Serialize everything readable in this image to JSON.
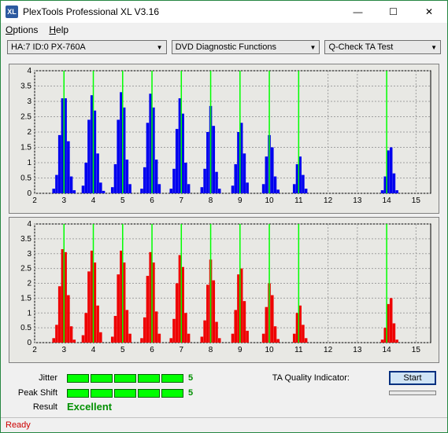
{
  "window": {
    "title": "PlexTools Professional XL V3.16",
    "icon_text": "XL",
    "close": "✕"
  },
  "menu": {
    "options": "Options",
    "help": "Help"
  },
  "toolbar": {
    "device": "HA:7 ID:0   PX-760A",
    "func": "DVD Diagnostic Functions",
    "test": "Q-Check TA Test"
  },
  "chart1": {
    "type": "bar",
    "color": "#0000ee",
    "bg": "#e8e8e2",
    "grid_color": "#a0a0a0",
    "marker_color": "#00ff00",
    "ylim": [
      0,
      4
    ],
    "ytick_step": 0.5,
    "xlim": [
      2,
      15.5
    ],
    "xtick_step": 1,
    "markers_x": [
      3,
      4,
      5,
      6,
      7,
      8,
      9,
      10,
      11,
      14
    ],
    "bars": [
      {
        "x": 2.65,
        "h": 0.15
      },
      {
        "x": 2.75,
        "h": 0.6
      },
      {
        "x": 2.85,
        "h": 1.9
      },
      {
        "x": 2.95,
        "h": 3.1
      },
      {
        "x": 3.05,
        "h": 3.1
      },
      {
        "x": 3.15,
        "h": 1.7
      },
      {
        "x": 3.25,
        "h": 0.55
      },
      {
        "x": 3.35,
        "h": 0.1
      },
      {
        "x": 3.65,
        "h": 0.25
      },
      {
        "x": 3.75,
        "h": 1.0
      },
      {
        "x": 3.85,
        "h": 2.4
      },
      {
        "x": 3.95,
        "h": 3.2
      },
      {
        "x": 4.05,
        "h": 2.7
      },
      {
        "x": 4.15,
        "h": 1.3
      },
      {
        "x": 4.25,
        "h": 0.35
      },
      {
        "x": 4.35,
        "h": 0.08
      },
      {
        "x": 4.65,
        "h": 0.2
      },
      {
        "x": 4.75,
        "h": 0.95
      },
      {
        "x": 4.85,
        "h": 2.4
      },
      {
        "x": 4.95,
        "h": 3.3
      },
      {
        "x": 5.05,
        "h": 2.8
      },
      {
        "x": 5.15,
        "h": 1.1
      },
      {
        "x": 5.25,
        "h": 0.3
      },
      {
        "x": 5.65,
        "h": 0.15
      },
      {
        "x": 5.75,
        "h": 0.85
      },
      {
        "x": 5.85,
        "h": 2.3
      },
      {
        "x": 5.95,
        "h": 3.25
      },
      {
        "x": 6.05,
        "h": 2.8
      },
      {
        "x": 6.15,
        "h": 1.1
      },
      {
        "x": 6.25,
        "h": 0.3
      },
      {
        "x": 6.65,
        "h": 0.15
      },
      {
        "x": 6.75,
        "h": 0.8
      },
      {
        "x": 6.85,
        "h": 2.1
      },
      {
        "x": 6.95,
        "h": 3.1
      },
      {
        "x": 7.05,
        "h": 2.6
      },
      {
        "x": 7.15,
        "h": 1.0
      },
      {
        "x": 7.25,
        "h": 0.3
      },
      {
        "x": 7.7,
        "h": 0.2
      },
      {
        "x": 7.8,
        "h": 0.8
      },
      {
        "x": 7.9,
        "h": 2.0
      },
      {
        "x": 8.0,
        "h": 2.85
      },
      {
        "x": 8.1,
        "h": 2.2
      },
      {
        "x": 8.2,
        "h": 0.7
      },
      {
        "x": 8.3,
        "h": 0.15
      },
      {
        "x": 8.75,
        "h": 0.25
      },
      {
        "x": 8.85,
        "h": 0.95
      },
      {
        "x": 8.95,
        "h": 2.0
      },
      {
        "x": 9.05,
        "h": 2.3
      },
      {
        "x": 9.15,
        "h": 1.3
      },
      {
        "x": 9.25,
        "h": 0.35
      },
      {
        "x": 9.8,
        "h": 0.3
      },
      {
        "x": 9.9,
        "h": 1.2
      },
      {
        "x": 10.0,
        "h": 1.9
      },
      {
        "x": 10.1,
        "h": 1.5
      },
      {
        "x": 10.2,
        "h": 0.55
      },
      {
        "x": 10.3,
        "h": 0.12
      },
      {
        "x": 10.85,
        "h": 0.3
      },
      {
        "x": 10.95,
        "h": 0.95
      },
      {
        "x": 11.05,
        "h": 1.2
      },
      {
        "x": 11.15,
        "h": 0.6
      },
      {
        "x": 11.25,
        "h": 0.15
      },
      {
        "x": 13.85,
        "h": 0.1
      },
      {
        "x": 13.95,
        "h": 0.55
      },
      {
        "x": 14.05,
        "h": 1.4
      },
      {
        "x": 14.15,
        "h": 1.5
      },
      {
        "x": 14.25,
        "h": 0.65
      },
      {
        "x": 14.35,
        "h": 0.1
      }
    ]
  },
  "chart2": {
    "type": "bar",
    "color": "#ee0000",
    "bg": "#e8e8e2",
    "grid_color": "#a0a0a0",
    "marker_color": "#00ff00",
    "ylim": [
      0,
      4
    ],
    "ytick_step": 0.5,
    "xlim": [
      2,
      15.5
    ],
    "xtick_step": 1,
    "markers_x": [
      3,
      4,
      5,
      6,
      7,
      8,
      9,
      10,
      11,
      14
    ],
    "bars": [
      {
        "x": 2.65,
        "h": 0.15
      },
      {
        "x": 2.75,
        "h": 0.6
      },
      {
        "x": 2.85,
        "h": 1.9
      },
      {
        "x": 2.95,
        "h": 3.15
      },
      {
        "x": 3.05,
        "h": 3.05
      },
      {
        "x": 3.15,
        "h": 1.6
      },
      {
        "x": 3.25,
        "h": 0.55
      },
      {
        "x": 3.35,
        "h": 0.1
      },
      {
        "x": 3.65,
        "h": 0.25
      },
      {
        "x": 3.75,
        "h": 1.0
      },
      {
        "x": 3.85,
        "h": 2.4
      },
      {
        "x": 3.95,
        "h": 3.1
      },
      {
        "x": 4.05,
        "h": 2.7
      },
      {
        "x": 4.15,
        "h": 1.25
      },
      {
        "x": 4.25,
        "h": 0.35
      },
      {
        "x": 4.65,
        "h": 0.2
      },
      {
        "x": 4.75,
        "h": 0.9
      },
      {
        "x": 4.85,
        "h": 2.3
      },
      {
        "x": 4.95,
        "h": 3.1
      },
      {
        "x": 5.05,
        "h": 2.7
      },
      {
        "x": 5.15,
        "h": 1.1
      },
      {
        "x": 5.25,
        "h": 0.3
      },
      {
        "x": 5.65,
        "h": 0.15
      },
      {
        "x": 5.75,
        "h": 0.85
      },
      {
        "x": 5.85,
        "h": 2.25
      },
      {
        "x": 5.95,
        "h": 3.05
      },
      {
        "x": 6.05,
        "h": 2.7
      },
      {
        "x": 6.15,
        "h": 1.05
      },
      {
        "x": 6.25,
        "h": 0.3
      },
      {
        "x": 6.65,
        "h": 0.15
      },
      {
        "x": 6.75,
        "h": 0.8
      },
      {
        "x": 6.85,
        "h": 2.0
      },
      {
        "x": 6.95,
        "h": 2.95
      },
      {
        "x": 7.05,
        "h": 2.55
      },
      {
        "x": 7.15,
        "h": 1.0
      },
      {
        "x": 7.25,
        "h": 0.3
      },
      {
        "x": 7.7,
        "h": 0.2
      },
      {
        "x": 7.8,
        "h": 0.75
      },
      {
        "x": 7.9,
        "h": 1.95
      },
      {
        "x": 8.0,
        "h": 2.8
      },
      {
        "x": 8.1,
        "h": 2.1
      },
      {
        "x": 8.2,
        "h": 0.7
      },
      {
        "x": 8.3,
        "h": 0.15
      },
      {
        "x": 8.75,
        "h": 0.3
      },
      {
        "x": 8.85,
        "h": 1.1
      },
      {
        "x": 8.95,
        "h": 2.3
      },
      {
        "x": 9.05,
        "h": 2.5
      },
      {
        "x": 9.15,
        "h": 1.4
      },
      {
        "x": 9.25,
        "h": 0.4
      },
      {
        "x": 9.8,
        "h": 0.3
      },
      {
        "x": 9.9,
        "h": 1.2
      },
      {
        "x": 10.0,
        "h": 2.0
      },
      {
        "x": 10.1,
        "h": 1.6
      },
      {
        "x": 10.2,
        "h": 0.55
      },
      {
        "x": 10.3,
        "h": 0.12
      },
      {
        "x": 10.85,
        "h": 0.3
      },
      {
        "x": 10.95,
        "h": 1.0
      },
      {
        "x": 11.05,
        "h": 1.25
      },
      {
        "x": 11.15,
        "h": 0.6
      },
      {
        "x": 11.25,
        "h": 0.15
      },
      {
        "x": 13.85,
        "h": 0.1
      },
      {
        "x": 13.95,
        "h": 0.5
      },
      {
        "x": 14.05,
        "h": 1.3
      },
      {
        "x": 14.15,
        "h": 1.5
      },
      {
        "x": 14.25,
        "h": 0.65
      },
      {
        "x": 14.35,
        "h": 0.1
      }
    ]
  },
  "metrics": {
    "jitter_label": "Jitter",
    "jitter_val": "5",
    "peak_label": "Peak Shift",
    "peak_val": "5",
    "result_label": "Result",
    "result_val": "Excellent",
    "result_color": "#009000",
    "ta_label": "TA Quality Indicator:",
    "start": "Start",
    "start_bg": "#d0e4f5"
  },
  "status": "Ready"
}
